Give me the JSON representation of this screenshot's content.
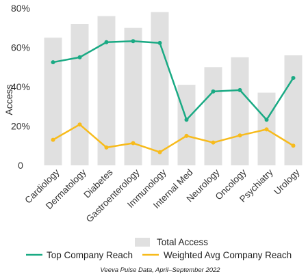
{
  "chart_data": {
    "type": "bar",
    "ylabel": "Access",
    "ylim": [
      0,
      80
    ],
    "yticks": [
      0,
      20,
      40,
      60,
      80
    ],
    "ytick_labels": [
      "0",
      "20%",
      "40%",
      "60%",
      "80%"
    ],
    "categories": [
      "Cardiology",
      "Dermatology",
      "Diabetes",
      "Gastroenterology",
      "Immunology",
      "Internal Med",
      "Neurology",
      "Oncology",
      "Psychiatry",
      "Urology"
    ],
    "series": [
      {
        "name": "Total Access",
        "type": "bar",
        "color": "#e0e0e0",
        "values": [
          65,
          72,
          76,
          70,
          78,
          41,
          50,
          55,
          37,
          56
        ]
      },
      {
        "name": "Top Company Reach",
        "type": "line",
        "color": "#1aaa84",
        "values": [
          52.5,
          55,
          62.7,
          63.2,
          62.3,
          23.2,
          37.6,
          38.3,
          23.2,
          44.5
        ]
      },
      {
        "name": "Weighted Avg Company Reach",
        "type": "line",
        "color": "#f7bb1c",
        "values": [
          13,
          20.8,
          9.1,
          11.3,
          6.7,
          15,
          11.6,
          15.2,
          18.3,
          10
        ]
      }
    ],
    "legend_position": "bottom",
    "source": "Veeva Pulse Data, April–September 2022"
  }
}
